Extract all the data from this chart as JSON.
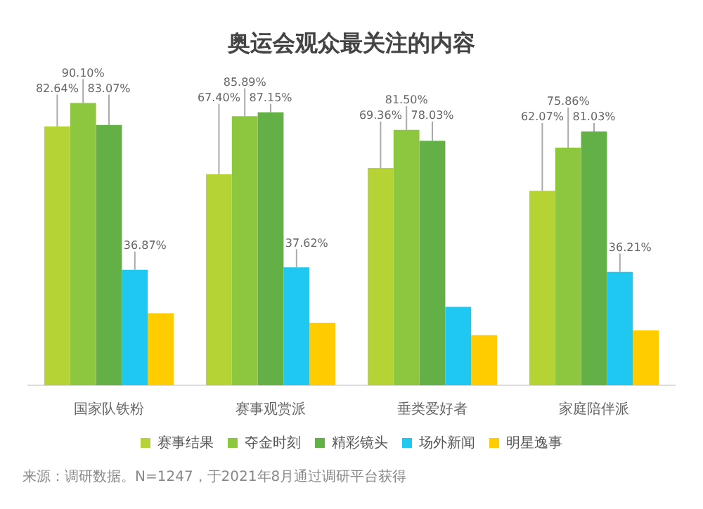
{
  "chart_data": {
    "type": "bar",
    "title": "奥运会观众最关注的内容",
    "categories": [
      "国家队铁粉",
      "赛事观赏派",
      "垂类爱好者",
      "家庭陪伴派"
    ],
    "series": [
      {
        "name": "赛事结果",
        "color": "#b5d334",
        "values": [
          82.64,
          67.4,
          69.36,
          62.07
        ],
        "value_labels": [
          "82.64%",
          "67.40%",
          "69.36%",
          "62.07%"
        ]
      },
      {
        "name": "夺金时刻",
        "color": "#8dc63f",
        "values": [
          90.1,
          85.89,
          81.5,
          75.86
        ],
        "value_labels": [
          "90.10%",
          "85.89%",
          "81.50%",
          "75.86%"
        ]
      },
      {
        "name": "精彩镜头",
        "color": "#62b046",
        "values": [
          83.07,
          87.15,
          78.03,
          81.03
        ],
        "value_labels": [
          "83.07%",
          "87.15%",
          "78.03%",
          "81.03%"
        ]
      },
      {
        "name": "场外新闻",
        "color": "#1fc8f0",
        "values": [
          36.87,
          37.62,
          25,
          36.21
        ],
        "value_labels": [
          "36.87%",
          "37.62%",
          null,
          "36.21%"
        ]
      },
      {
        "name": "明星逸事",
        "color": "#ffcc00",
        "values": [
          23,
          20,
          16,
          17.5
        ],
        "value_labels": [
          null,
          null,
          null,
          null
        ]
      }
    ],
    "legend": "bottom",
    "grid": false,
    "annotations": [
      "来源：调研数据。N=1247，于2021年8月通过调研平台获得"
    ]
  }
}
